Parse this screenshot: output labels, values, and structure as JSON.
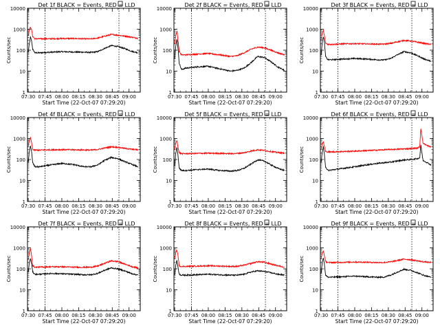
{
  "figure": {
    "colors": {
      "events": "#000000",
      "lld": "#ff0000",
      "axes": "#000000"
    },
    "x_tick_labels": [
      "07:30",
      "07:45",
      "08:00",
      "08:15",
      "08:30",
      "08:45",
      "09:00"
    ],
    "y_tick_labels": [
      "1",
      "10",
      "100",
      "1000",
      "10000"
    ],
    "dashed_time_markers": [
      "07:45",
      "08:51"
    ]
  },
  "chart_data": [
    {
      "type": "line",
      "title": "Det 1f BLACK = Events, RED = LLD",
      "xlabel": "Start Time (22-Oct-07 07:29:20)",
      "ylabel": "Counts/sec",
      "yscale": "log",
      "ylim": [
        1,
        10000
      ],
      "xlim": [
        "07:29:20",
        "09:10"
      ],
      "grid": false,
      "series": [
        {
          "name": "Events",
          "color": "#000000",
          "x": [
            "07:30",
            "07:31",
            "07:32",
            "07:33",
            "07:34",
            "07:36",
            "07:40",
            "07:50",
            "08:00",
            "08:10",
            "08:20",
            "08:26",
            "08:32",
            "08:38",
            "08:44",
            "08:50",
            "08:56",
            "09:02",
            "09:08"
          ],
          "y": [
            80,
            200,
            420,
            270,
            110,
            75,
            75,
            80,
            85,
            82,
            80,
            78,
            85,
            120,
            165,
            150,
            120,
            90,
            75
          ]
        },
        {
          "name": "LLD",
          "color": "#ff0000",
          "x": [
            "07:30",
            "07:31",
            "07:32",
            "07:33",
            "07:34",
            "07:36",
            "07:40",
            "07:50",
            "08:00",
            "08:10",
            "08:20",
            "08:26",
            "08:32",
            "08:38",
            "08:44",
            "08:50",
            "08:56",
            "09:02",
            "09:08"
          ],
          "y": [
            500,
            900,
            1300,
            900,
            450,
            350,
            350,
            350,
            360,
            360,
            350,
            345,
            380,
            460,
            560,
            520,
            470,
            420,
            370
          ]
        }
      ]
    },
    {
      "type": "line",
      "title": "Det 2f BLACK = Events, RED = LLD",
      "xlabel": "Start Time (22-Oct-07 07:29:20)",
      "ylabel": "Counts/sec",
      "yscale": "log",
      "ylim": [
        1,
        10000
      ],
      "xlim": [
        "07:29:20",
        "09:10"
      ],
      "grid": false,
      "series": [
        {
          "name": "Events",
          "color": "#000000",
          "x": [
            "07:30",
            "07:31",
            "07:32",
            "07:33",
            "07:34",
            "07:36",
            "07:40",
            "07:50",
            "08:00",
            "08:10",
            "08:20",
            "08:26",
            "08:32",
            "08:38",
            "08:44",
            "08:50",
            "08:56",
            "09:02",
            "09:08"
          ],
          "y": [
            40,
            150,
            350,
            120,
            25,
            12,
            14,
            16,
            17,
            13,
            10,
            11,
            14,
            25,
            50,
            45,
            28,
            16,
            11
          ]
        },
        {
          "name": "LLD",
          "color": "#ff0000",
          "x": [
            "07:30",
            "07:31",
            "07:32",
            "07:33",
            "07:34",
            "07:36",
            "07:40",
            "07:50",
            "08:00",
            "08:10",
            "08:20",
            "08:26",
            "08:32",
            "08:38",
            "08:44",
            "08:50",
            "08:56",
            "09:02",
            "09:08"
          ],
          "y": [
            200,
            500,
            800,
            300,
            90,
            60,
            60,
            65,
            70,
            60,
            50,
            55,
            75,
            110,
            140,
            130,
            100,
            75,
            60
          ]
        }
      ]
    },
    {
      "type": "line",
      "title": "Det 3f BLACK = Events, RED = LLD",
      "xlabel": "Start Time (22-Oct-07 07:29:20)",
      "ylabel": "Counts/sec",
      "yscale": "log",
      "ylim": [
        1,
        10000
      ],
      "xlim": [
        "07:29:20",
        "09:10"
      ],
      "grid": false,
      "series": [
        {
          "name": "Events",
          "color": "#000000",
          "x": [
            "07:30",
            "07:31",
            "07:32",
            "07:33",
            "07:34",
            "07:36",
            "07:40",
            "07:50",
            "08:00",
            "08:10",
            "08:20",
            "08:26",
            "08:32",
            "08:38",
            "08:44",
            "08:50",
            "08:56",
            "09:02",
            "09:08"
          ],
          "y": [
            60,
            250,
            450,
            200,
            50,
            35,
            35,
            38,
            40,
            38,
            35,
            34,
            40,
            60,
            85,
            75,
            55,
            38,
            30
          ]
        },
        {
          "name": "LLD",
          "color": "#ff0000",
          "x": [
            "07:30",
            "07:31",
            "07:32",
            "07:33",
            "07:34",
            "07:36",
            "07:40",
            "07:50",
            "08:00",
            "08:10",
            "08:20",
            "08:26",
            "08:32",
            "08:38",
            "08:44",
            "08:50",
            "08:56",
            "09:02",
            "09:08"
          ],
          "y": [
            300,
            600,
            900,
            450,
            220,
            190,
            190,
            200,
            205,
            200,
            195,
            195,
            210,
            250,
            290,
            275,
            240,
            210,
            190
          ]
        }
      ]
    },
    {
      "type": "line",
      "title": "Det 4f BLACK = Events, RED = LLD",
      "xlabel": "Start Time (22-Oct-07 07:29:20)",
      "ylabel": "Counts/sec",
      "yscale": "log",
      "ylim": [
        1,
        10000
      ],
      "xlim": [
        "07:29:20",
        "09:10"
      ],
      "grid": false,
      "series": [
        {
          "name": "Events",
          "color": "#000000",
          "x": [
            "07:30",
            "07:31",
            "07:32",
            "07:33",
            "07:34",
            "07:36",
            "07:40",
            "07:50",
            "08:00",
            "08:10",
            "08:20",
            "08:26",
            "08:32",
            "08:38",
            "08:44",
            "08:50",
            "08:56",
            "09:02",
            "09:08"
          ],
          "y": [
            70,
            250,
            450,
            220,
            70,
            45,
            45,
            55,
            65,
            58,
            45,
            45,
            55,
            90,
            125,
            110,
            80,
            60,
            45
          ]
        },
        {
          "name": "LLD",
          "color": "#ff0000",
          "x": [
            "07:30",
            "07:31",
            "07:32",
            "07:33",
            "07:34",
            "07:36",
            "07:40",
            "07:50",
            "08:00",
            "08:10",
            "08:20",
            "08:26",
            "08:32",
            "08:38",
            "08:44",
            "08:50",
            "08:56",
            "09:02",
            "09:08"
          ],
          "y": [
            400,
            800,
            1100,
            600,
            300,
            280,
            280,
            290,
            295,
            290,
            285,
            280,
            300,
            350,
            400,
            380,
            340,
            310,
            290
          ]
        }
      ]
    },
    {
      "type": "line",
      "title": "Det 5f BLACK = Events, RED = LLD",
      "xlabel": "Start Time (22-Oct-07 07:29:20)",
      "ylabel": "Counts/sec",
      "yscale": "log",
      "ylim": [
        1,
        10000
      ],
      "xlim": [
        "07:29:20",
        "09:10"
      ],
      "grid": false,
      "series": [
        {
          "name": "Events",
          "color": "#000000",
          "x": [
            "07:30",
            "07:31",
            "07:32",
            "07:33",
            "07:34",
            "07:36",
            "07:40",
            "07:50",
            "08:00",
            "08:10",
            "08:20",
            "08:26",
            "08:32",
            "08:38",
            "08:44",
            "08:50",
            "08:56",
            "09:02",
            "09:08"
          ],
          "y": [
            50,
            200,
            400,
            150,
            40,
            30,
            30,
            33,
            35,
            30,
            28,
            30,
            38,
            60,
            95,
            85,
            55,
            38,
            30
          ]
        },
        {
          "name": "LLD",
          "color": "#ff0000",
          "x": [
            "07:30",
            "07:31",
            "07:32",
            "07:33",
            "07:34",
            "07:36",
            "07:40",
            "07:50",
            "08:00",
            "08:10",
            "08:20",
            "08:26",
            "08:32",
            "08:38",
            "08:44",
            "08:50",
            "08:56",
            "09:02",
            "09:08"
          ],
          "y": [
            300,
            600,
            800,
            400,
            210,
            190,
            190,
            195,
            200,
            195,
            190,
            195,
            210,
            250,
            290,
            270,
            240,
            215,
            200
          ]
        }
      ]
    },
    {
      "type": "line",
      "title": "Det 6f BLACK = Events, RED = LLD",
      "xlabel": "Start Time (22-Oct-07 07:29:20)",
      "ylabel": "Counts/sec",
      "yscale": "log",
      "ylim": [
        1,
        10000
      ],
      "xlim": [
        "07:29:20",
        "09:10"
      ],
      "grid": false,
      "series": [
        {
          "name": "Events",
          "color": "#000000",
          "x": [
            "07:30",
            "07:31",
            "07:32",
            "07:33",
            "07:34",
            "07:36",
            "07:40",
            "07:50",
            "08:00",
            "08:10",
            "08:20",
            "08:26",
            "08:32",
            "08:38",
            "08:44",
            "08:50",
            "08:56",
            "08:58",
            "08:59",
            "09:01",
            "09:05",
            "09:08"
          ],
          "y": [
            70,
            220,
            400,
            150,
            45,
            30,
            32,
            38,
            45,
            55,
            65,
            70,
            75,
            85,
            95,
            100,
            110,
            120,
            500,
            90,
            70,
            55
          ]
        },
        {
          "name": "LLD",
          "color": "#ff0000",
          "x": [
            "07:30",
            "07:31",
            "07:32",
            "07:33",
            "07:34",
            "07:36",
            "07:40",
            "07:50",
            "08:00",
            "08:10",
            "08:20",
            "08:26",
            "08:32",
            "08:38",
            "08:44",
            "08:50",
            "08:56",
            "08:58",
            "08:59",
            "09:01",
            "09:05",
            "09:08"
          ],
          "y": [
            300,
            550,
            700,
            400,
            240,
            230,
            230,
            240,
            250,
            265,
            280,
            290,
            300,
            310,
            320,
            330,
            350,
            400,
            3000,
            600,
            450,
            400
          ]
        }
      ]
    },
    {
      "type": "line",
      "title": "Det 7f BLACK = Events, RED = LLD",
      "xlabel": "Start Time (22-Oct-07 07:29:20)",
      "ylabel": "Counts/sec",
      "yscale": "log",
      "ylim": [
        1,
        10000
      ],
      "xlim": [
        "07:29:20",
        "09:10"
      ],
      "grid": false,
      "series": [
        {
          "name": "Events",
          "color": "#000000",
          "x": [
            "07:30",
            "07:31",
            "07:32",
            "07:33",
            "07:34",
            "07:36",
            "07:40",
            "07:50",
            "08:00",
            "08:10",
            "08:20",
            "08:26",
            "08:32",
            "08:38",
            "08:44",
            "08:50",
            "08:56",
            "09:02",
            "09:08"
          ],
          "y": [
            70,
            200,
            300,
            170,
            70,
            55,
            55,
            60,
            58,
            55,
            52,
            52,
            60,
            85,
            110,
            100,
            80,
            60,
            50
          ]
        },
        {
          "name": "LLD",
          "color": "#ff0000",
          "x": [
            "07:30",
            "07:31",
            "07:32",
            "07:33",
            "07:34",
            "07:36",
            "07:40",
            "07:50",
            "08:00",
            "08:10",
            "08:20",
            "08:26",
            "08:32",
            "08:38",
            "08:44",
            "08:50",
            "08:56",
            "09:02",
            "09:08"
          ],
          "y": [
            250,
            600,
            900,
            400,
            140,
            120,
            120,
            125,
            125,
            120,
            118,
            120,
            135,
            180,
            240,
            220,
            170,
            130,
            110
          ]
        }
      ]
    },
    {
      "type": "line",
      "title": "Det 8f BLACK = Events, RED = LLD",
      "xlabel": "Start Time (22-Oct-07 07:29:20)",
      "ylabel": "Counts/sec",
      "yscale": "log",
      "ylim": [
        1,
        10000
      ],
      "xlim": [
        "07:29:20",
        "09:10"
      ],
      "grid": false,
      "series": [
        {
          "name": "Events",
          "color": "#000000",
          "x": [
            "07:30",
            "07:31",
            "07:32",
            "07:33",
            "07:34",
            "07:36",
            "07:40",
            "07:50",
            "08:00",
            "08:10",
            "08:20",
            "08:26",
            "08:32",
            "08:38",
            "08:44",
            "08:50",
            "08:56",
            "09:02",
            "09:08"
          ],
          "y": [
            50,
            150,
            250,
            120,
            55,
            50,
            50,
            52,
            55,
            52,
            50,
            50,
            55,
            70,
            80,
            75,
            65,
            55,
            50
          ]
        },
        {
          "name": "LLD",
          "color": "#ff0000",
          "x": [
            "07:30",
            "07:31",
            "07:32",
            "07:33",
            "07:34",
            "07:36",
            "07:40",
            "07:50",
            "08:00",
            "08:10",
            "08:20",
            "08:26",
            "08:32",
            "08:38",
            "08:44",
            "08:50",
            "08:56",
            "09:02",
            "09:08"
          ],
          "y": [
            300,
            600,
            800,
            400,
            140,
            130,
            130,
            135,
            140,
            135,
            130,
            130,
            150,
            180,
            220,
            205,
            170,
            140,
            120
          ]
        }
      ]
    },
    {
      "type": "line",
      "title": "Det 9f BLACK = Events, RED = LLD",
      "xlabel": "Start Time (22-Oct-07 07:29:20)",
      "ylabel": "Counts/sec",
      "yscale": "log",
      "ylim": [
        1,
        10000
      ],
      "xlim": [
        "07:29:20",
        "09:10"
      ],
      "grid": false,
      "series": [
        {
          "name": "Events",
          "color": "#000000",
          "x": [
            "07:30",
            "07:31",
            "07:32",
            "07:33",
            "07:34",
            "07:36",
            "07:40",
            "07:50",
            "08:00",
            "08:10",
            "08:20",
            "08:26",
            "08:32",
            "08:38",
            "08:44",
            "08:50",
            "08:56",
            "09:02",
            "09:08"
          ],
          "y": [
            60,
            200,
            350,
            150,
            50,
            40,
            40,
            42,
            45,
            42,
            40,
            40,
            50,
            70,
            95,
            85,
            65,
            48,
            40
          ]
        },
        {
          "name": "LLD",
          "color": "#ff0000",
          "x": [
            "07:30",
            "07:31",
            "07:32",
            "07:33",
            "07:34",
            "07:36",
            "07:40",
            "07:50",
            "08:00",
            "08:10",
            "08:20",
            "08:26",
            "08:32",
            "08:38",
            "08:44",
            "08:50",
            "08:56",
            "09:02",
            "09:08"
          ],
          "y": [
            300,
            550,
            700,
            400,
            220,
            200,
            200,
            205,
            210,
            205,
            200,
            200,
            215,
            250,
            290,
            270,
            240,
            215,
            200
          ]
        }
      ]
    }
  ]
}
